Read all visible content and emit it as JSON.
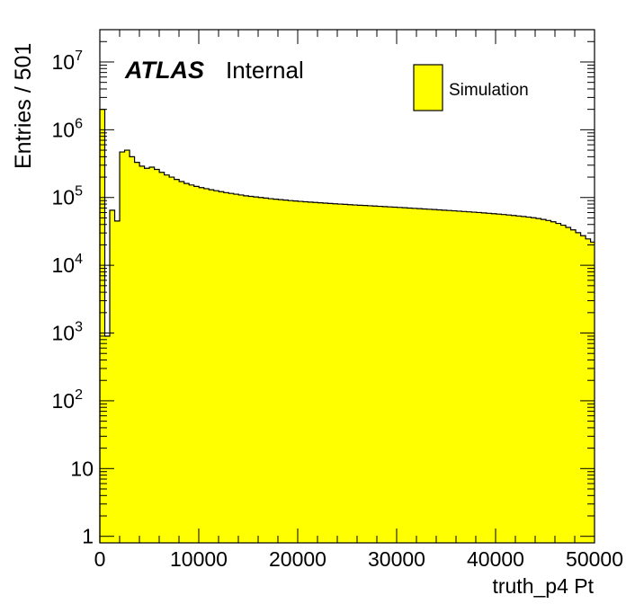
{
  "chart_data": {
    "type": "bar",
    "subtype": "histogram-step",
    "y_scale": "log",
    "xlabel": "truth_p4 Pt",
    "ylabel": "Entries / 501",
    "xlim": [
      0,
      50000
    ],
    "ylim": [
      0.8,
      30000000
    ],
    "bin_width": 501,
    "x_ticks": [
      "0",
      "10000",
      "20000",
      "30000",
      "40000",
      "50000"
    ],
    "y_ticks": [
      {
        "base": "1",
        "exp": ""
      },
      {
        "base": "10",
        "exp": ""
      },
      {
        "base": "10",
        "exp": "2"
      },
      {
        "base": "10",
        "exp": "3"
      },
      {
        "base": "10",
        "exp": "4"
      },
      {
        "base": "10",
        "exp": "5"
      },
      {
        "base": "10",
        "exp": "6"
      },
      {
        "base": "10",
        "exp": "7"
      }
    ],
    "atlas_label": {
      "experiment": "ATLAS",
      "status": "Internal"
    },
    "legend": {
      "entries": [
        "Simulation"
      ],
      "position": "top-right"
    },
    "fill_color": "#ffff00",
    "edge_color": "#000000",
    "series": [
      {
        "values": [
          2000000,
          900,
          65000,
          45000,
          470000,
          500000,
          400000,
          330000,
          290000,
          270000,
          280000,
          260000,
          235000,
          215000,
          200000,
          185000,
          172000,
          161000,
          153000,
          146000,
          140000,
          135000,
          130000,
          126000,
          122000,
          118000,
          115000,
          112000,
          109000,
          106000,
          104000,
          102000,
          100000,
          98000,
          96000,
          94500,
          93000,
          91500,
          90000,
          88800,
          87600,
          86500,
          85500,
          84500,
          83500,
          82600,
          81700,
          80800,
          80000,
          79200,
          78400,
          77600,
          76900,
          76200,
          75500,
          74800,
          74100,
          73400,
          72700,
          72000,
          71300,
          70600,
          69900,
          69200,
          68500,
          67800,
          67100,
          66400,
          65700,
          65000,
          64300,
          63600,
          62900,
          62200,
          61500,
          60800,
          60100,
          59300,
          58500,
          57700,
          56900,
          56100,
          55200,
          54300,
          53400,
          52400,
          51400,
          50300,
          49000,
          47500,
          45800,
          43800,
          41500,
          39000,
          36200,
          33300,
          30300,
          27300,
          24500,
          22000
        ]
      }
    ]
  }
}
